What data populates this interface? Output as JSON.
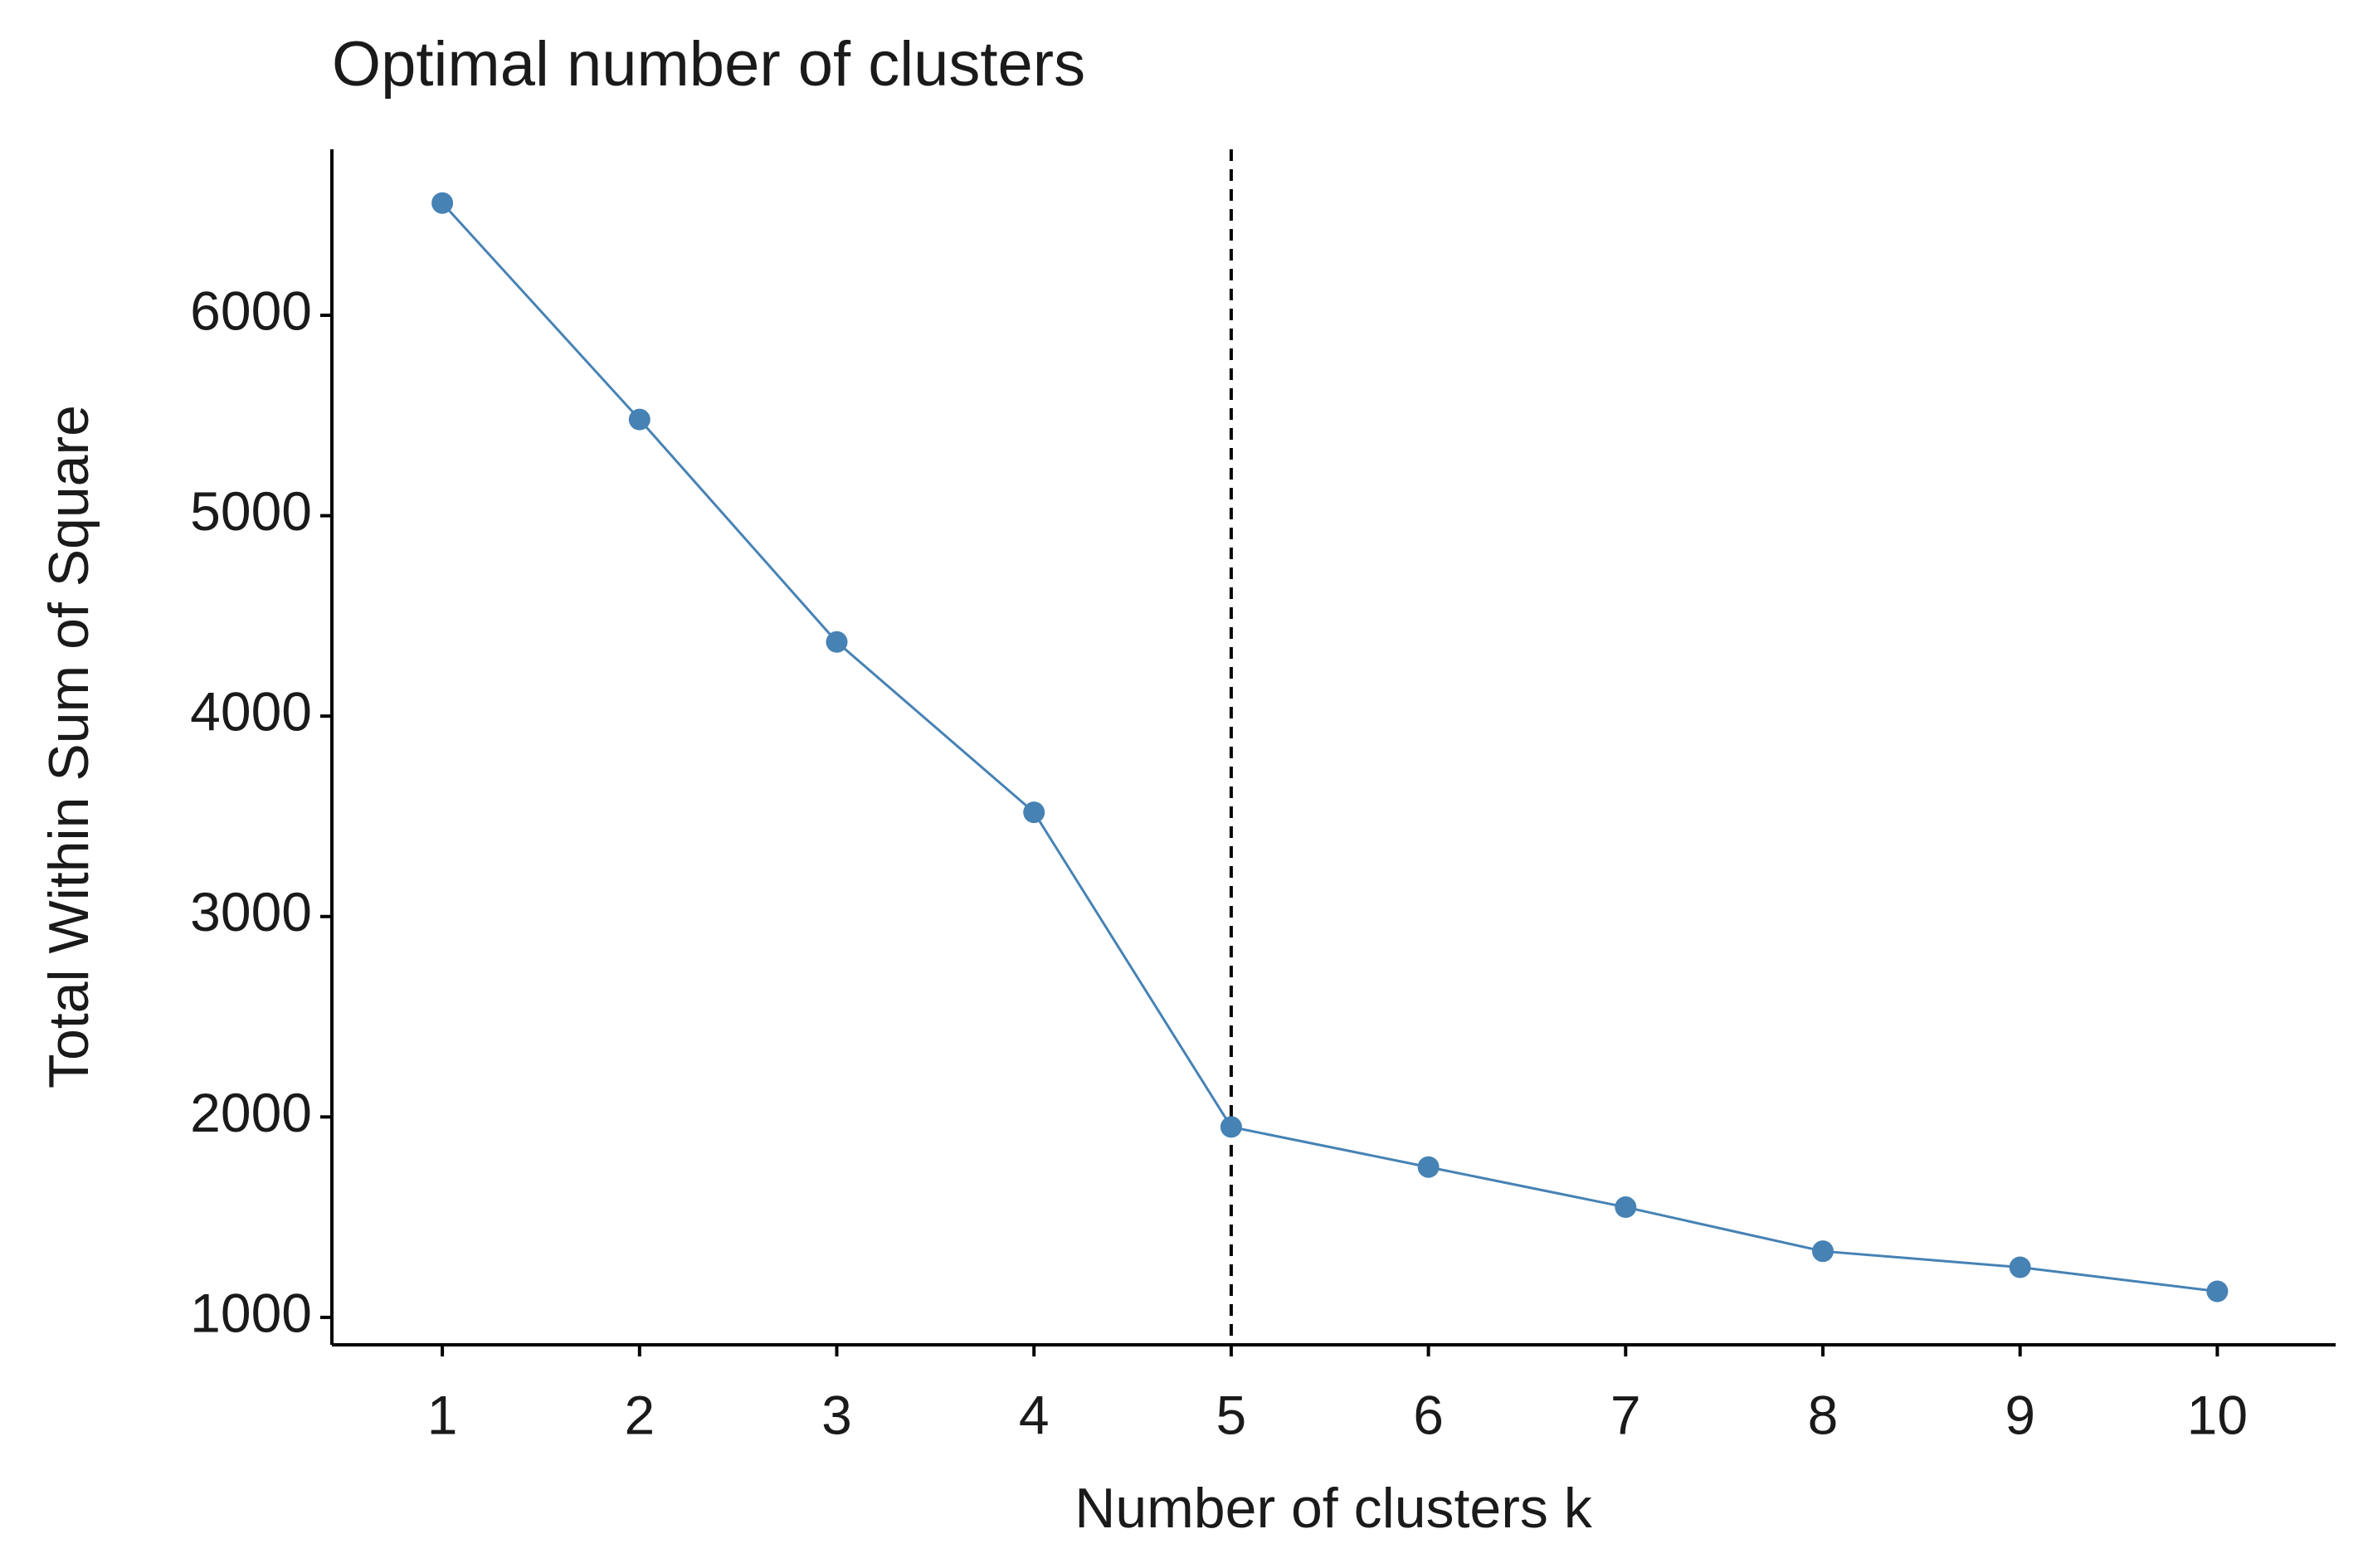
{
  "chart_data": {
    "type": "line",
    "title": "Optimal number of clusters",
    "x_label": "Number of clusters k",
    "y_label": "Total Within Sum of Square",
    "x": [
      1,
      2,
      3,
      4,
      5,
      6,
      7,
      8,
      9,
      10
    ],
    "series": [
      {
        "color": "#4682b4",
        "values": [
          6560,
          5480,
          4370,
          3520,
          1950,
          1750,
          1550,
          1330,
          1250,
          1130
        ]
      }
    ],
    "vline": 5,
    "xlim": [
      0.44,
      10.6
    ],
    "xticks": [
      1,
      2,
      3,
      4,
      5,
      6,
      7,
      8,
      9,
      10
    ],
    "ylim": [
      863,
      6828
    ],
    "yticks": [
      1000,
      2000,
      3000,
      4000,
      5000,
      6000
    ],
    "grid": false
  }
}
